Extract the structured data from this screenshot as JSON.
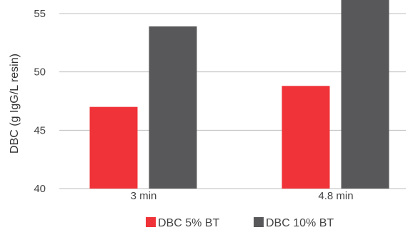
{
  "chart_data": {
    "type": "bar",
    "categories": [
      "3 min",
      "4.8 min"
    ],
    "series": [
      {
        "name": "DBC 5% BT",
        "values": [
          47.0,
          48.8
        ],
        "color": "#ef3338"
      },
      {
        "name": "DBC 10% BT",
        "values": [
          53.9,
          56.2
        ],
        "color": "#58585a"
      }
    ],
    "ylabel": "DBC (g IgG/L resin)",
    "xlabel": "",
    "ylim": [
      40,
      56
    ],
    "yticks": [
      40,
      45,
      50,
      55
    ],
    "grid": true,
    "legend_position": "bottom-center",
    "colors": {
      "grid": "#bdbdbd",
      "text": "#444444"
    }
  }
}
